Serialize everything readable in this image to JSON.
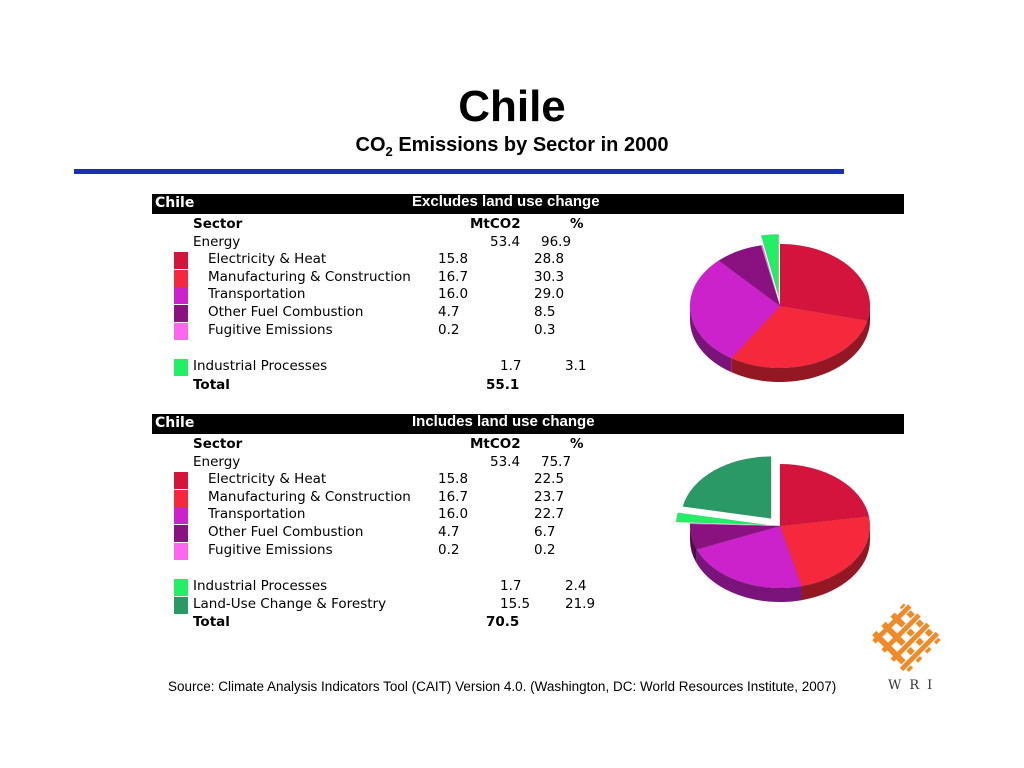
{
  "slide": {
    "title": "Chile",
    "subtitle_pre": "CO",
    "subtitle_sub": "2",
    "subtitle_post": " Emissions by Sector in 2000",
    "source": "Source: Climate Analysis Indicators Tool (CAIT) Version 4.0. (Washington, DC: World Resources Institute, 2007)",
    "logo_text": "WRI"
  },
  "colors": {
    "rule": "#1a2fb5",
    "electricity": "#d4143c",
    "manufacturing": "#f5283c",
    "transportation": "#cc22cc",
    "other_fuel": "#8a1280",
    "fugitive": "#ff66ee",
    "industrial": "#22ee66",
    "land_use": "#2a9966",
    "logo": "#f08a28"
  },
  "tables": [
    {
      "country": "Chile",
      "title": "Excludes land use change",
      "col_sector": "Sector",
      "col_mt": "MtCO2",
      "col_pct": "%",
      "energy": {
        "label": "Energy",
        "mt": "53.4",
        "pct": "96.9"
      },
      "subs": [
        {
          "label": "Electricity & Heat",
          "mt": "15.8",
          "pct": "28.8",
          "color": "#d4143c"
        },
        {
          "label": "Manufacturing & Construction",
          "mt": "16.7",
          "pct": "30.3",
          "color": "#f5283c"
        },
        {
          "label": "Transportation",
          "mt": "16.0",
          "pct": "29.0",
          "color": "#cc22cc"
        },
        {
          "label": "Other Fuel Combustion",
          "mt": "4.7",
          "pct": "8.5",
          "color": "#8a1280"
        },
        {
          "label": "Fugitive Emissions",
          "mt": "0.2",
          "pct": "0.3",
          "color": "#ff66ee"
        }
      ],
      "extras": [
        {
          "label": "Industrial Processes",
          "mt": "1.7",
          "pct": "3.1",
          "color": "#22ee66"
        }
      ],
      "total": {
        "label": "Total",
        "mt": "55.1"
      }
    },
    {
      "country": "Chile",
      "title": "Includes land use change",
      "col_sector": "Sector",
      "col_mt": "MtCO2",
      "col_pct": "%",
      "energy": {
        "label": "Energy",
        "mt": "53.4",
        "pct": "75.7"
      },
      "subs": [
        {
          "label": "Electricity & Heat",
          "mt": "15.8",
          "pct": "22.5",
          "color": "#d4143c"
        },
        {
          "label": "Manufacturing & Construction",
          "mt": "16.7",
          "pct": "23.7",
          "color": "#f5283c"
        },
        {
          "label": "Transportation",
          "mt": "16.0",
          "pct": "22.7",
          "color": "#cc22cc"
        },
        {
          "label": "Other Fuel Combustion",
          "mt": "4.7",
          "pct": "6.7",
          "color": "#8a1280"
        },
        {
          "label": "Fugitive Emissions",
          "mt": "0.2",
          "pct": "0.2",
          "color": "#ff66ee"
        }
      ],
      "extras": [
        {
          "label": "Industrial Processes",
          "mt": "1.7",
          "pct": "2.4",
          "color": "#22ee66"
        },
        {
          "label": "Land-Use Change & Forestry",
          "mt": "15.5",
          "pct": "21.9",
          "color": "#2a9966"
        }
      ],
      "total": {
        "label": "Total",
        "mt": "70.5"
      }
    }
  ],
  "chart_data": [
    {
      "type": "pie",
      "title": "Excludes land use change",
      "unit": "%",
      "slices": [
        {
          "name": "Electricity & Heat",
          "value": 28.8,
          "color": "#d4143c"
        },
        {
          "name": "Manufacturing & Construction",
          "value": 30.3,
          "color": "#f5283c"
        },
        {
          "name": "Transportation",
          "value": 29.0,
          "color": "#cc22cc"
        },
        {
          "name": "Other Fuel Combustion",
          "value": 8.5,
          "color": "#8a1280"
        },
        {
          "name": "Fugitive Emissions",
          "value": 0.3,
          "color": "#ff66ee"
        },
        {
          "name": "Industrial Processes",
          "value": 3.1,
          "color": "#22ee66",
          "exploded": true
        }
      ]
    },
    {
      "type": "pie",
      "title": "Includes land use change",
      "unit": "%",
      "slices": [
        {
          "name": "Electricity & Heat",
          "value": 22.5,
          "color": "#d4143c"
        },
        {
          "name": "Manufacturing & Construction",
          "value": 23.7,
          "color": "#f5283c"
        },
        {
          "name": "Transportation",
          "value": 22.7,
          "color": "#cc22cc"
        },
        {
          "name": "Other Fuel Combustion",
          "value": 6.7,
          "color": "#8a1280"
        },
        {
          "name": "Fugitive Emissions",
          "value": 0.2,
          "color": "#ff66ee"
        },
        {
          "name": "Industrial Processes",
          "value": 2.4,
          "color": "#22ee66",
          "exploded": true
        },
        {
          "name": "Land-Use Change & Forestry",
          "value": 21.9,
          "color": "#2a9966",
          "exploded": true
        }
      ]
    }
  ]
}
